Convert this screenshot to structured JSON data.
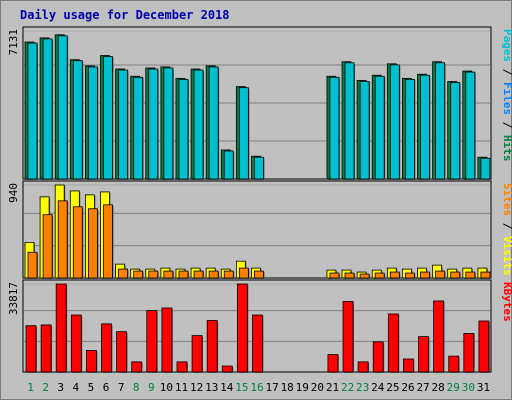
{
  "chart_data": {
    "type": "bar",
    "title": "Daily usage for December 2018",
    "categories": [
      "1",
      "2",
      "3",
      "4",
      "5",
      "6",
      "7",
      "8",
      "9",
      "10",
      "11",
      "12",
      "13",
      "14",
      "15",
      "16",
      "17",
      "18",
      "19",
      "20",
      "21",
      "22",
      "23",
      "24",
      "25",
      "26",
      "27",
      "28",
      "29",
      "30",
      "31"
    ],
    "weekend_days": [
      "1",
      "2",
      "8",
      "9",
      "15",
      "16",
      "22",
      "23",
      "29",
      "30"
    ],
    "colors": {
      "pages": "#00c0d0",
      "files": "#0080ff",
      "hits": "#008040",
      "sites": "#ff8000",
      "visits": "#ffff00",
      "kbytes": "#ff0000",
      "title": "#0000b0",
      "weekend_label": "#008040",
      "weekday_label": "#000000"
    },
    "panels": [
      {
        "id": "hits-files-pages",
        "ymax_label": "7131",
        "ylim": [
          0,
          7131
        ],
        "right_label": [
          {
            "text": "Pages",
            "color": "#00c0d0"
          },
          {
            "text": " / ",
            "color": "#000000"
          },
          {
            "text": "Files",
            "color": "#0080ff"
          },
          {
            "text": " / ",
            "color": "#000000"
          },
          {
            "text": "Hits",
            "color": "#008040"
          }
        ],
        "series": [
          {
            "name": "Hits",
            "values": [
              6600,
              6800,
              6950,
              5750,
              5450,
              5950,
              5300,
              4950,
              5350,
              5400,
              4850,
              5300,
              5450,
              1400,
              4450,
              1100,
              0,
              0,
              0,
              0,
              4950,
              5650,
              4750,
              5000,
              5550,
              4850,
              5050,
              5650,
              4700,
              5200,
              1050
            ]
          },
          {
            "name": "Pages",
            "values": [
              6550,
              6750,
              6900,
              5700,
              5400,
              5900,
              5250,
              4900,
              5300,
              5350,
              4800,
              5250,
              5400,
              1350,
              4400,
              1050,
              0,
              0,
              0,
              0,
              4900,
              5600,
              4700,
              4950,
              5500,
              4800,
              5000,
              5600,
              4650,
              5150,
              1000
            ]
          }
        ]
      },
      {
        "id": "visits-sites",
        "ymax_label": "940",
        "ylim": [
          0,
          940
        ],
        "right_label": [
          {
            "text": "Sites",
            "color": "#ff8000"
          },
          {
            "text": " / ",
            "color": "#000000"
          },
          {
            "text": "Visits",
            "color": "#ffff00"
          }
        ],
        "series": [
          {
            "name": "Visits",
            "values": [
              360,
              820,
              940,
              880,
              840,
              870,
              140,
              90,
              90,
              100,
              90,
              100,
              100,
              90,
              170,
              100,
              0,
              0,
              0,
              0,
              80,
              80,
              60,
              80,
              100,
              90,
              100,
              130,
              90,
              100,
              100
            ]
          },
          {
            "name": "Sites",
            "values": [
              260,
              640,
              780,
              720,
              700,
              740,
              90,
              70,
              70,
              70,
              70,
              70,
              70,
              70,
              100,
              70,
              0,
              0,
              0,
              0,
              50,
              50,
              40,
              50,
              60,
              50,
              60,
              70,
              60,
              60,
              60
            ]
          }
        ]
      },
      {
        "id": "kbytes",
        "ymax_label": "33817",
        "ylim": [
          0,
          33817
        ],
        "right_label": [
          {
            "text": "KBytes",
            "color": "#ff0000"
          }
        ],
        "series": [
          {
            "name": "KBytes",
            "values": [
              17800,
              18100,
              33817,
              21900,
              8300,
              18500,
              15500,
              3900,
              23600,
              24600,
              3900,
              14000,
              19800,
              2300,
              33817,
              21900,
              0,
              0,
              0,
              0,
              6700,
              27100,
              3900,
              11600,
              22300,
              5000,
              13600,
              27300,
              6100,
              14800,
              19600
            ]
          }
        ]
      }
    ]
  }
}
